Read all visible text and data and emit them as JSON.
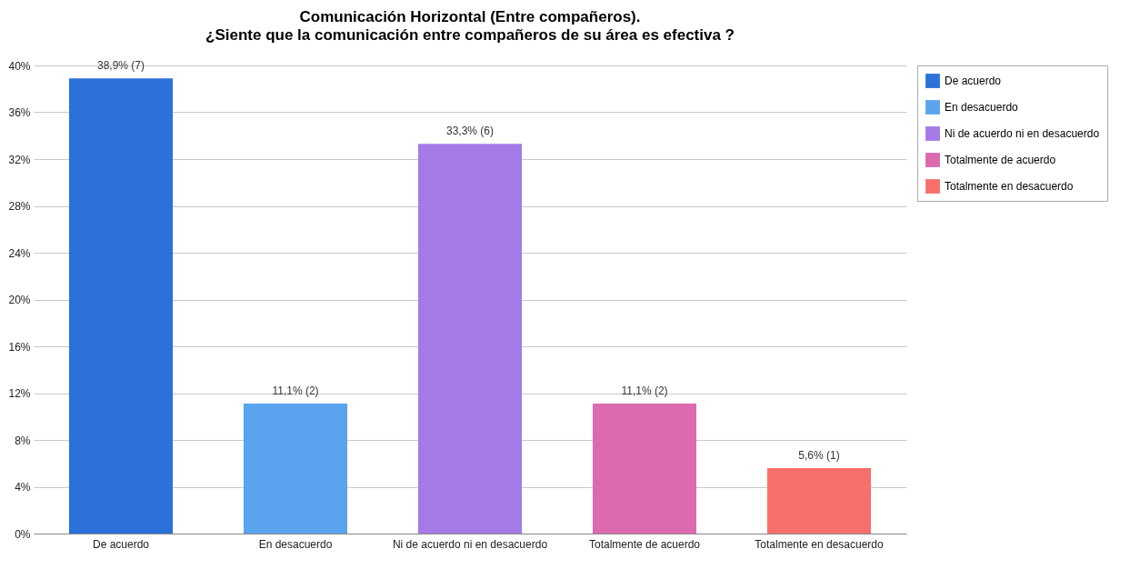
{
  "chart_data": {
    "type": "bar",
    "title": "Comunicación Horizontal (Entre compañeros).",
    "subtitle": "¿Siente que la comunicación entre compañeros de su área es efectiva ?",
    "categories": [
      "De acuerdo",
      "En desacuerdo",
      "Ni de acuerdo ni en desacuerdo",
      "Totalmente de acuerdo",
      "Totalmente en desacuerdo"
    ],
    "series": [
      {
        "name": "De acuerdo",
        "color": "#2b71d9",
        "values": [
          38.9,
          null,
          null,
          null,
          null
        ],
        "value_labels": [
          "38,9% (7)",
          null,
          null,
          null,
          null
        ]
      },
      {
        "name": "En desacuerdo",
        "color": "#5aa3ef",
        "values": [
          null,
          11.1,
          null,
          null,
          null
        ],
        "value_labels": [
          null,
          "11,1% (2)",
          null,
          null,
          null
        ]
      },
      {
        "name": "Ni de acuerdo ni en desacuerdo",
        "color": "#a47ae6",
        "values": [
          null,
          null,
          33.3,
          null,
          null
        ],
        "value_labels": [
          null,
          null,
          "33,3% (6)",
          null,
          null
        ]
      },
      {
        "name": "Totalmente de acuerdo",
        "color": "#dc6aaf",
        "values": [
          null,
          null,
          null,
          11.1,
          null
        ],
        "value_labels": [
          null,
          null,
          null,
          "11,1% (2)",
          null
        ]
      },
      {
        "name": "Totalmente en desacuerdo",
        "color": "#f7706b",
        "values": [
          null,
          null,
          null,
          null,
          5.6
        ],
        "value_labels": [
          null,
          null,
          null,
          null,
          "5,6% (1)"
        ]
      }
    ],
    "ylim": [
      0,
      40
    ],
    "yticks": [
      {
        "value": 0,
        "label": "0%"
      },
      {
        "value": 4,
        "label": "4%"
      },
      {
        "value": 8,
        "label": "8%"
      },
      {
        "value": 12,
        "label": "12%"
      },
      {
        "value": 16,
        "label": "16%"
      },
      {
        "value": 20,
        "label": "20%"
      },
      {
        "value": 24,
        "label": "24%"
      },
      {
        "value": 28,
        "label": "28%"
      },
      {
        "value": 32,
        "label": "32%"
      },
      {
        "value": 36,
        "label": "36%"
      },
      {
        "value": 40,
        "label": "40%"
      }
    ],
    "grid": "y",
    "legend": "right"
  }
}
